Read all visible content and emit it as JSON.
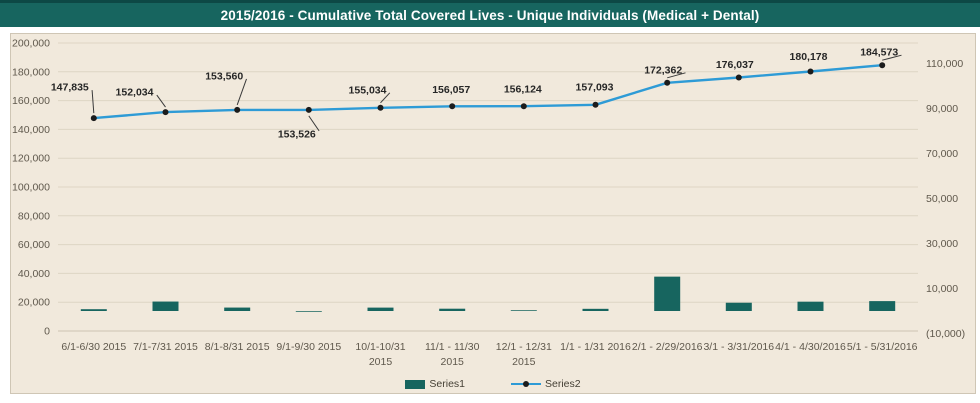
{
  "title": "2015/2016 - Cumulative Total Covered Lives - Unique Individuals (Medical + Dental)",
  "legend": {
    "series1": "Series1",
    "series2": "Series2"
  },
  "colors": {
    "teal": "#17655f",
    "teal_dark_edge": "#0d4845",
    "line_blue": "#2e9bd6",
    "marker_black": "#1c1c1c",
    "plot_bg": "#f1e9dc",
    "grid": "#ded5c4",
    "grid_zero": "#cdc4b2",
    "axis_text": "#5f584c",
    "label_text": "#262626",
    "leader_line": "#3a3a3a"
  },
  "chart_data": {
    "type": "combo",
    "title": "2015/2016 - Cumulative Total Covered Lives - Unique Individuals (Medical + Dental)",
    "categories": [
      [
        "6/1-6/30 2015"
      ],
      [
        "7/1-7/31 2015"
      ],
      [
        "8/1-8/31 2015"
      ],
      [
        "9/1-9/30 2015"
      ],
      [
        "10/1-10/31",
        "2015"
      ],
      [
        "11/1 - 11/30",
        "2015"
      ],
      [
        "12/1 - 12/31",
        "2015"
      ],
      [
        "1/1 - 1/31 2016"
      ],
      [
        "2/1 - 2/29/2016"
      ],
      [
        "3/1 - 3/31/2016"
      ],
      [
        "4/1 - 4/30/2016"
      ],
      [
        "5/1 - 5/31/2016"
      ]
    ],
    "series": [
      {
        "name": "Series1",
        "type": "bar",
        "axis": "right",
        "values": [
          800,
          4199,
          1526,
          -34,
          1508,
          1023,
          67,
          969,
          15269,
          3675,
          4141,
          4395
        ]
      },
      {
        "name": "Series2",
        "type": "line",
        "axis": "left",
        "values": [
          147835,
          152034,
          153560,
          153526,
          155034,
          156057,
          156124,
          157093,
          172362,
          176037,
          180178,
          184573
        ],
        "labels": [
          "147,835",
          "152,034",
          "153,560",
          "153,526",
          "155,034",
          "156,057",
          "156,124",
          "157,093",
          "172,362",
          "176,037",
          "180,178",
          "184,573"
        ],
        "label_placement": [
          "above",
          "above",
          "above",
          "below",
          "above",
          "above",
          "above",
          "above",
          "above",
          "above",
          "above",
          "above"
        ]
      }
    ],
    "left_axis": {
      "min": 0,
      "max": 200000,
      "step": 20000,
      "ticks": [
        {
          "v": 200000,
          "t": "200,000"
        },
        {
          "v": 180000,
          "t": "180,000"
        },
        {
          "v": 160000,
          "t": "160,000"
        },
        {
          "v": 140000,
          "t": "140,000"
        },
        {
          "v": 120000,
          "t": "120,000"
        },
        {
          "v": 100000,
          "t": "100,000"
        },
        {
          "v": 80000,
          "t": "80,000"
        },
        {
          "v": 60000,
          "t": "60,000"
        },
        {
          "v": 40000,
          "t": "40,000"
        },
        {
          "v": 20000,
          "t": "20,000"
        },
        {
          "v": 0,
          "t": "0"
        }
      ]
    },
    "right_axis": {
      "min": -10000,
      "max": 110000,
      "step": 20000,
      "ticks": [
        {
          "v": 110000,
          "t": "110,000"
        },
        {
          "v": 90000,
          "t": "90,000"
        },
        {
          "v": 70000,
          "t": "70,000"
        },
        {
          "v": 50000,
          "t": "50,000"
        },
        {
          "v": 30000,
          "t": "30,000"
        },
        {
          "v": 10000,
          "t": "10,000"
        },
        {
          "v": -10000,
          "t": "(10,000)"
        }
      ]
    },
    "grid": "horizontal",
    "legend_position": "bottom"
  }
}
